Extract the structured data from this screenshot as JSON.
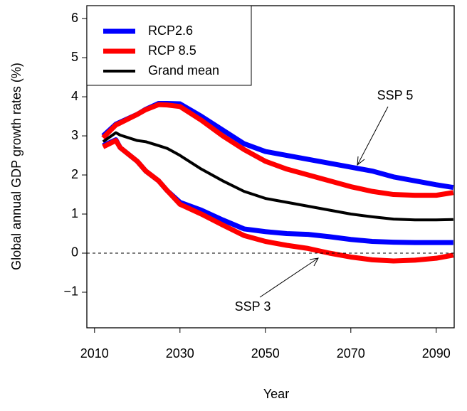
{
  "chart_data": {
    "type": "line",
    "x_label": "Year",
    "y_label": "Global annual GDP growth rates (%)",
    "x": [
      2012,
      2015,
      2016,
      2020,
      2022,
      2025,
      2027,
      2030,
      2035,
      2040,
      2045,
      2050,
      2055,
      2060,
      2065,
      2070,
      2075,
      2080,
      2085,
      2090,
      2094
    ],
    "series": [
      {
        "name": "RCP2.6",
        "color": "#0000ff",
        "width": 7,
        "values": [
          3.0,
          3.3,
          3.35,
          3.55,
          3.68,
          3.83,
          3.83,
          3.82,
          3.5,
          3.15,
          2.8,
          2.6,
          2.5,
          2.4,
          2.3,
          2.2,
          2.1,
          1.95,
          1.85,
          1.75,
          1.68
        ]
      },
      {
        "name": "RCP 8.5",
        "color": "#ff0000",
        "width": 7,
        "values": [
          2.95,
          3.28,
          3.33,
          3.55,
          3.67,
          3.8,
          3.79,
          3.75,
          3.4,
          3.0,
          2.65,
          2.35,
          2.15,
          2.0,
          1.85,
          1.7,
          1.58,
          1.5,
          1.48,
          1.48,
          1.55
        ]
      },
      {
        "name": "Grand mean",
        "color": "#000000",
        "width": 4,
        "values": [
          2.85,
          3.08,
          3.02,
          2.88,
          2.85,
          2.75,
          2.68,
          2.5,
          2.15,
          1.85,
          1.58,
          1.4,
          1.3,
          1.2,
          1.1,
          1.0,
          0.93,
          0.87,
          0.85,
          0.85,
          0.86
        ]
      },
      {
        "name": "RCP2.6",
        "color": "#0000ff",
        "width": 7,
        "values": [
          2.75,
          2.9,
          2.7,
          2.35,
          2.1,
          1.85,
          1.6,
          1.3,
          1.1,
          0.85,
          0.62,
          0.55,
          0.5,
          0.48,
          0.42,
          0.35,
          0.3,
          0.28,
          0.27,
          0.27,
          0.27
        ]
      },
      {
        "name": "RCP 8.5",
        "color": "#ff0000",
        "width": 7,
        "values": [
          2.72,
          2.88,
          2.7,
          2.35,
          2.1,
          1.85,
          1.6,
          1.25,
          1.0,
          0.72,
          0.45,
          0.3,
          0.2,
          0.12,
          0.0,
          -0.1,
          -0.17,
          -0.2,
          -0.18,
          -0.13,
          -0.05
        ]
      }
    ],
    "annotations": [
      "SSP 5",
      "SSP 3"
    ],
    "hline": 0,
    "xlim": [
      2008.2,
      2094.2
    ],
    "ylim": [
      -1.91,
      6.33
    ],
    "xticks": [
      2010,
      2030,
      2050,
      2070,
      2090
    ],
    "yticks": [
      {
        "value": -1,
        "label": "−1"
      },
      0,
      1,
      2,
      3,
      4,
      5,
      6
    ],
    "legend": "top-left"
  }
}
